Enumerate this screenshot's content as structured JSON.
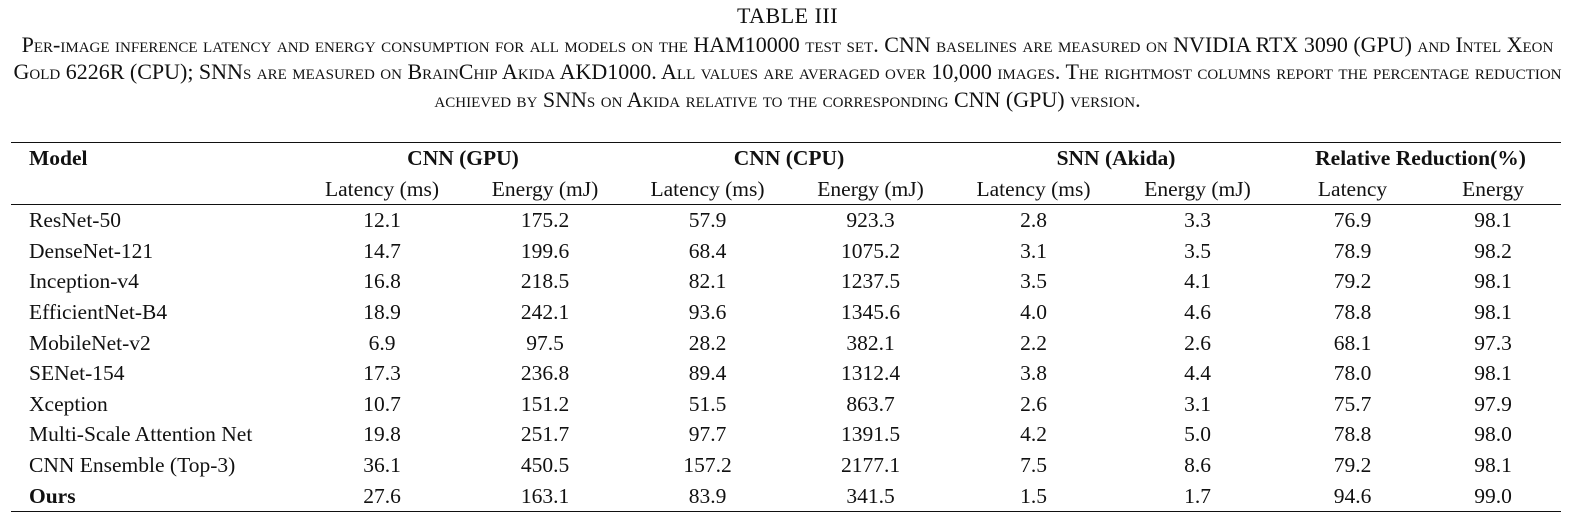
{
  "table_label": "TABLE III",
  "caption": "Per-image inference latency and energy consumption for all models on the HAM10000 test set. CNN baselines are measured on NVIDIA RTX 3090 (GPU) and Intel Xeon Gold 6226R (CPU); SNNs are measured on BrainChip Akida AKD1000. All values are averaged over 10,000 images. The rightmost columns report the percentage reduction achieved by SNNs on Akida relative to the corresponding CNN (GPU) version.",
  "header": {
    "model": "Model",
    "groups": [
      "CNN (GPU)",
      "CNN (CPU)",
      "SNN (Akida)",
      "Relative Reduction(%)"
    ],
    "subheaders": [
      "Latency (ms)",
      "Energy (mJ)",
      "Latency (ms)",
      "Energy (mJ)",
      "Latency (ms)",
      "Energy (mJ)",
      "Latency",
      "Energy"
    ]
  },
  "rows": [
    {
      "model": "ResNet-50",
      "values": [
        "12.1",
        "175.2",
        "57.9",
        "923.3",
        "2.8",
        "3.3",
        "76.9",
        "98.1"
      ]
    },
    {
      "model": "DenseNet-121",
      "values": [
        "14.7",
        "199.6",
        "68.4",
        "1075.2",
        "3.1",
        "3.5",
        "78.9",
        "98.2"
      ]
    },
    {
      "model": "Inception-v4",
      "values": [
        "16.8",
        "218.5",
        "82.1",
        "1237.5",
        "3.5",
        "4.1",
        "79.2",
        "98.1"
      ]
    },
    {
      "model": "EfficientNet-B4",
      "values": [
        "18.9",
        "242.1",
        "93.6",
        "1345.6",
        "4.0",
        "4.6",
        "78.8",
        "98.1"
      ]
    },
    {
      "model": "MobileNet-v2",
      "values": [
        "6.9",
        "97.5",
        "28.2",
        "382.1",
        "2.2",
        "2.6",
        "68.1",
        "97.3"
      ]
    },
    {
      "model": "SENet-154",
      "values": [
        "17.3",
        "236.8",
        "89.4",
        "1312.4",
        "3.8",
        "4.4",
        "78.0",
        "98.1"
      ]
    },
    {
      "model": "Xception",
      "values": [
        "10.7",
        "151.2",
        "51.5",
        "863.7",
        "2.6",
        "3.1",
        "75.7",
        "97.9"
      ]
    },
    {
      "model": "Multi-Scale Attention Net",
      "values": [
        "19.8",
        "251.7",
        "97.7",
        "1391.5",
        "4.2",
        "5.0",
        "78.8",
        "98.0"
      ]
    },
    {
      "model": "CNN Ensemble (Top-3)",
      "values": [
        "36.1",
        "450.5",
        "157.2",
        "2177.1",
        "7.5",
        "8.6",
        "79.2",
        "98.1"
      ]
    },
    {
      "model": "Ours",
      "values": [
        "27.6",
        "163.1",
        "83.9",
        "341.5",
        "1.5",
        "1.7",
        "94.6",
        "99.0"
      ]
    }
  ]
}
